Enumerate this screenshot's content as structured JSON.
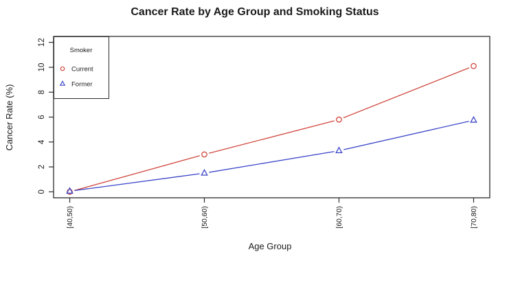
{
  "chart_data": {
    "type": "line",
    "title": "Cancer Rate by Age Group and Smoking Status",
    "xlabel": "Age Group",
    "ylabel": "Cancer Rate (%)",
    "categories": [
      "[40,50)",
      "[50,60)",
      "[60,70)",
      "[70,80)"
    ],
    "series": [
      {
        "name": "Current",
        "marker": "circle",
        "color": "#d0453c",
        "values": [
          0.0,
          3.0,
          5.8,
          10.1
        ]
      },
      {
        "name": "Former",
        "marker": "triangle",
        "color": "#3a45c8",
        "values": [
          0.05,
          1.5,
          3.3,
          5.75
        ]
      }
    ],
    "ylim": [
      0,
      12
    ],
    "yticks": [
      0,
      2,
      4,
      6,
      8,
      10,
      12
    ],
    "legend": {
      "title": "Smoker",
      "position": "top-left"
    },
    "grid": false,
    "line_style": "points-and-lines-with-gaps",
    "axis_color": "#2a2a2a",
    "text_color": "#1a1a1a",
    "background": "#ffffff"
  }
}
